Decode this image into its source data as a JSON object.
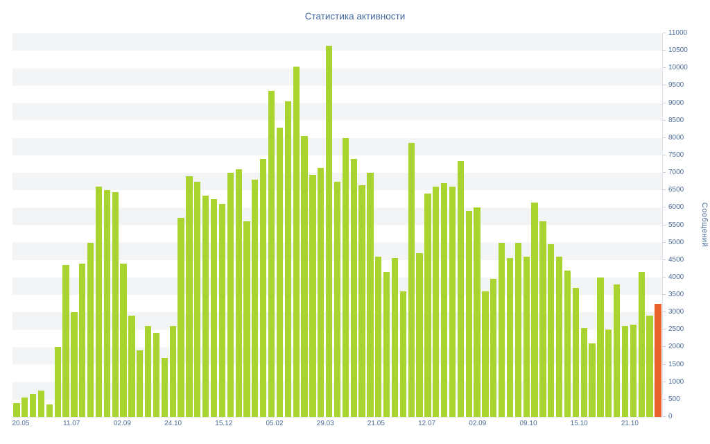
{
  "chart_data": {
    "type": "bar",
    "title": "Статистика активности",
    "ylabel": "Сообщений",
    "xlabel": "",
    "ylim": [
      0,
      11000
    ],
    "ytick_step": 500,
    "grid": "striped-horizontal-bands",
    "legend": "none",
    "x_labels": [
      "20.05",
      "11.07",
      "02.09",
      "24.10",
      "15.12",
      "05.02",
      "29.03",
      "21.05",
      "12.07",
      "02.09",
      "09.10",
      "15.10",
      "21.10"
    ],
    "values": [
      400,
      550,
      650,
      750,
      350,
      2000,
      4350,
      3000,
      4400,
      5000,
      6600,
      6500,
      6450,
      4400,
      2900,
      1900,
      2600,
      2400,
      1700,
      2600,
      5700,
      6900,
      6750,
      6350,
      6250,
      6100,
      7000,
      7100,
      5600,
      6800,
      7400,
      9350,
      8300,
      9050,
      10050,
      8050,
      6950,
      7150,
      10650,
      6750,
      8000,
      7400,
      6650,
      7000,
      4600,
      4150,
      4550,
      3600,
      7850,
      4700,
      6400,
      6600,
      6700,
      6600,
      7350,
      5900,
      6000,
      3600,
      3950,
      5000,
      4550,
      5000,
      4600,
      6150,
      5600,
      4950,
      4600,
      4200,
      3700,
      2550,
      2100,
      4000,
      2500,
      3800,
      2600,
      2650,
      4150,
      2900,
      3250
    ],
    "highlight_last_bar": true,
    "colors": {
      "bar": "#a9d32e",
      "highlight_bar": "#e8632b",
      "axis_text": "#4a6b96",
      "title_text": "#44689d",
      "stripe": "#f3f4f5",
      "background": "#ffffff"
    }
  }
}
